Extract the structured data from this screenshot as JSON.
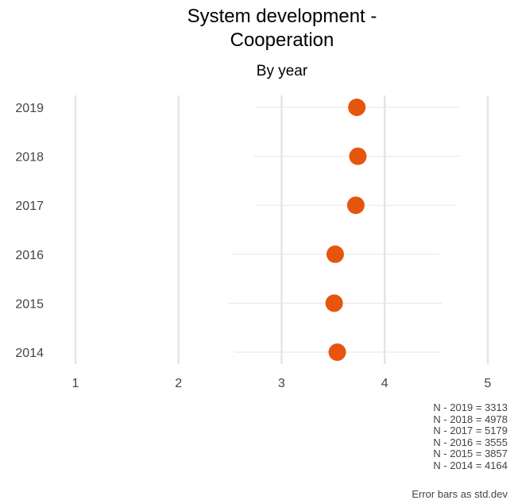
{
  "chart_data": {
    "type": "scatter",
    "title": "System development -\nCooperation",
    "subtitle": "By year",
    "xlabel": "",
    "ylabel": "",
    "xlim": [
      1,
      5
    ],
    "x_ticks": [
      "1",
      "2",
      "3",
      "4",
      "5"
    ],
    "grid": "vertical major",
    "error_bars": "std.dev",
    "points_color": "#E6550D",
    "errorbar_color": "#E5E5E5",
    "grid_color": "#E5E5E5",
    "categories": [
      "2019",
      "2018",
      "2017",
      "2016",
      "2015",
      "2014"
    ],
    "values": [
      3.73,
      3.74,
      3.72,
      3.52,
      3.51,
      3.54
    ],
    "sd_low": [
      2.74,
      2.73,
      2.74,
      2.51,
      2.48,
      2.54
    ],
    "sd_high": [
      4.72,
      4.74,
      4.7,
      4.53,
      4.56,
      4.55
    ]
  },
  "caption_lines": [
    "N - 2019 = 3313",
    "N - 2018 = 4978",
    "N - 2017 = 5179",
    "N - 2016 = 3555",
    "N - 2015 = 3857",
    "N - 2014 = 4164"
  ],
  "footnote": "Error bars as std.dev"
}
